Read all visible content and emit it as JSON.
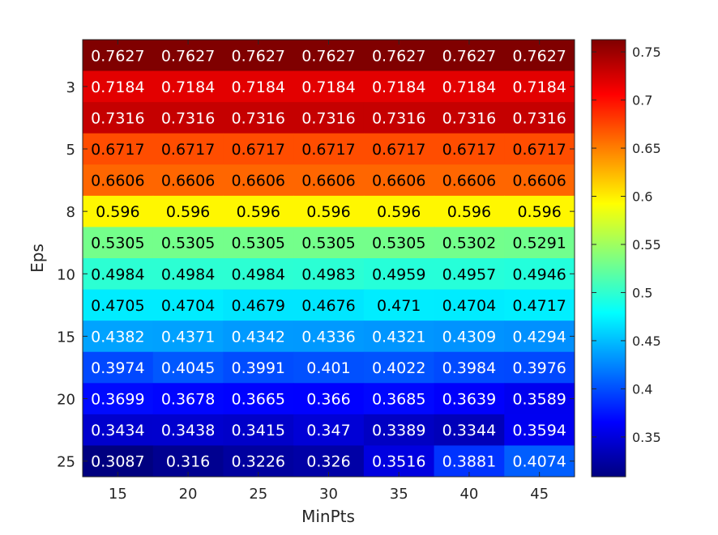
{
  "chart_data": {
    "type": "heatmap",
    "xlabel": "MinPts",
    "ylabel": "Eps",
    "x_tick_labels": [
      "15",
      "20",
      "25",
      "30",
      "35",
      "40",
      "45"
    ],
    "y_tick_labels": [
      "3",
      "5",
      "8",
      "10",
      "15",
      "20",
      "25"
    ],
    "y_tick_rows": [
      1,
      3,
      5,
      7,
      9,
      11,
      13
    ],
    "colormap": "jet",
    "clim": [
      0.3087,
      0.7627
    ],
    "colorbar_ticks": [
      "0.35",
      "0.4",
      "0.45",
      "0.5",
      "0.55",
      "0.6",
      "0.65",
      "0.7",
      "0.75"
    ],
    "cell_labels": [
      [
        "0.7627",
        "0.7627",
        "0.7627",
        "0.7627",
        "0.7627",
        "0.7627",
        "0.7627"
      ],
      [
        "0.7184",
        "0.7184",
        "0.7184",
        "0.7184",
        "0.7184",
        "0.7184",
        "0.7184"
      ],
      [
        "0.7316",
        "0.7316",
        "0.7316",
        "0.7316",
        "0.7316",
        "0.7316",
        "0.7316"
      ],
      [
        "0.6717",
        "0.6717",
        "0.6717",
        "0.6717",
        "0.6717",
        "0.6717",
        "0.6717"
      ],
      [
        "0.6606",
        "0.6606",
        "0.6606",
        "0.6606",
        "0.6606",
        "0.6606",
        "0.6606"
      ],
      [
        "0.596",
        "0.596",
        "0.596",
        "0.596",
        "0.596",
        "0.596",
        "0.596"
      ],
      [
        "0.5305",
        "0.5305",
        "0.5305",
        "0.5305",
        "0.5305",
        "0.5302",
        "0.5291"
      ],
      [
        "0.4984",
        "0.4984",
        "0.4984",
        "0.4983",
        "0.4959",
        "0.4957",
        "0.4946"
      ],
      [
        "0.4705",
        "0.4704",
        "0.4679",
        "0.4676",
        "0.471",
        "0.4704",
        "0.4717"
      ],
      [
        "0.4382",
        "0.4371",
        "0.4342",
        "0.4336",
        "0.4321",
        "0.4309",
        "0.4294"
      ],
      [
        "0.3974",
        "0.4045",
        "0.3991",
        "0.401",
        "0.4022",
        "0.3984",
        "0.3976"
      ],
      [
        "0.3699",
        "0.3678",
        "0.3665",
        "0.366",
        "0.3685",
        "0.3639",
        "0.3589"
      ],
      [
        "0.3434",
        "0.3438",
        "0.3415",
        "0.347",
        "0.3389",
        "0.3344",
        "0.3594"
      ],
      [
        "0.3087",
        "0.316",
        "0.3226",
        "0.326",
        "0.3516",
        "0.3881",
        "0.4074"
      ]
    ]
  }
}
